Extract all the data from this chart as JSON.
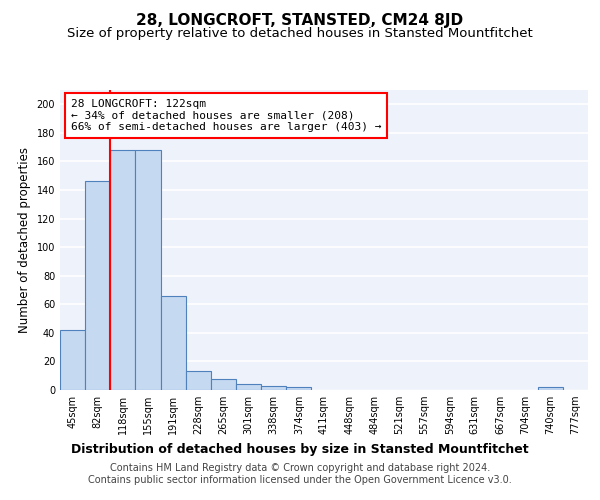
{
  "title": "28, LONGCROFT, STANSTED, CM24 8JD",
  "subtitle": "Size of property relative to detached houses in Stansted Mountfitchet",
  "xlabel": "Distribution of detached houses by size in Stansted Mountfitchet",
  "ylabel": "Number of detached properties",
  "bin_labels": [
    "45sqm",
    "82sqm",
    "118sqm",
    "155sqm",
    "191sqm",
    "228sqm",
    "265sqm",
    "301sqm",
    "338sqm",
    "374sqm",
    "411sqm",
    "448sqm",
    "484sqm",
    "521sqm",
    "557sqm",
    "594sqm",
    "631sqm",
    "667sqm",
    "704sqm",
    "740sqm",
    "777sqm"
  ],
  "bar_heights": [
    42,
    146,
    168,
    168,
    66,
    13,
    8,
    4,
    3,
    2,
    0,
    0,
    0,
    0,
    0,
    0,
    0,
    0,
    0,
    2,
    0
  ],
  "bar_color": "#c5d9f1",
  "bar_edge_color": "#4f81bd",
  "property_line_bin": 2,
  "property_line_color": "#ff0000",
  "annotation_line1": "28 LONGCROFT: 122sqm",
  "annotation_line2": "← 34% of detached houses are smaller (208)",
  "annotation_line3": "66% of semi-detached houses are larger (403) →",
  "annotation_box_color": "#ffffff",
  "annotation_box_edge_color": "#ff0000",
  "ylim": [
    0,
    210
  ],
  "yticks": [
    0,
    20,
    40,
    60,
    80,
    100,
    120,
    140,
    160,
    180,
    200
  ],
  "bg_color": "#eef3fb",
  "grid_color": "#ffffff",
  "footer": "Contains HM Land Registry data © Crown copyright and database right 2024.\nContains public sector information licensed under the Open Government Licence v3.0.",
  "title_fontsize": 11,
  "subtitle_fontsize": 9.5,
  "xlabel_fontsize": 9,
  "ylabel_fontsize": 8.5,
  "tick_fontsize": 7,
  "annotation_fontsize": 8,
  "footer_fontsize": 7
}
